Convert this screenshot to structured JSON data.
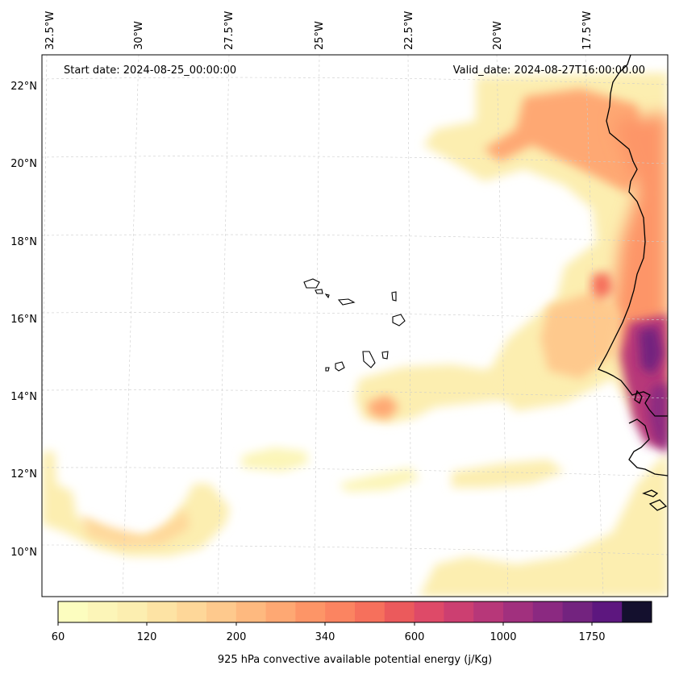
{
  "map": {
    "start_date_label": "Start date: 2024-08-25_00:00:00",
    "valid_date_label": "Valid_date: 2024-08-27T16:00:00.00",
    "longitude_labels": [
      "32.5°W",
      "30°W",
      "27.5°W",
      "25°W",
      "22.5°W",
      "20°W",
      "17.5°W"
    ],
    "latitude_labels": [
      "22°N",
      "20°N",
      "18°N",
      "16°N",
      "14°N",
      "12°N",
      "10°N"
    ],
    "coastline_color": "#000000",
    "gridline_color": "#cccccc",
    "field_name": "925 hPa convective available potential energy"
  },
  "colorbar": {
    "label": "925 hPa convective available potential energy (j/Kg)",
    "tick_labels": [
      "60",
      "120",
      "200",
      "340",
      "600",
      "1000",
      "1750"
    ],
    "colors": [
      "#fcfdbf",
      "#fcf5b8",
      "#fceeb0",
      "#fde3a4",
      "#fed799",
      "#fec98d",
      "#feb97f",
      "#fea873",
      "#fd9567",
      "#fb8461",
      "#f6705c",
      "#eb5a5c",
      "#de4a68",
      "#cc3f71",
      "#b73779",
      "#a1307e",
      "#8b2981",
      "#73237f",
      "#5d177f",
      "#14102e"
    ]
  }
}
